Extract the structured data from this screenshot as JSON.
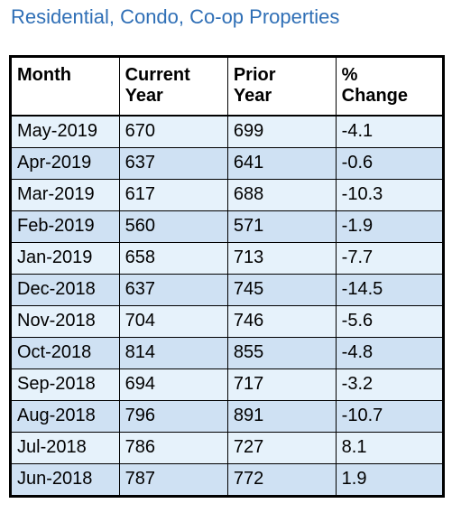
{
  "title": "Residential, Condo, Co-op Properties",
  "colors": {
    "title": "#2f6fb6",
    "row_light": "#e6f2fb",
    "row_dark": "#cfe1f3"
  },
  "table": {
    "headers": [
      [
        "Month"
      ],
      [
        "Current",
        "Year"
      ],
      [
        "Prior",
        "Year"
      ],
      [
        "%",
        "Change"
      ]
    ],
    "rows": [
      [
        "May-2019",
        "670",
        "699",
        "-4.1"
      ],
      [
        "Apr-2019",
        "637",
        "641",
        "-0.6"
      ],
      [
        "Mar-2019",
        "617",
        "688",
        "-10.3"
      ],
      [
        "Feb-2019",
        "560",
        "571",
        "-1.9"
      ],
      [
        "Jan-2019",
        "658",
        "713",
        "-7.7"
      ],
      [
        "Dec-2018",
        "637",
        "745",
        "-14.5"
      ],
      [
        "Nov-2018",
        "704",
        "746",
        "-5.6"
      ],
      [
        "Oct-2018",
        "814",
        "855",
        "-4.8"
      ],
      [
        "Sep-2018",
        "694",
        "717",
        "-3.2"
      ],
      [
        "Aug-2018",
        "796",
        "891",
        "-10.7"
      ],
      [
        "Jul-2018",
        "786",
        "727",
        "8.1"
      ],
      [
        "Jun-2018",
        "787",
        "772",
        "1.9"
      ]
    ]
  }
}
